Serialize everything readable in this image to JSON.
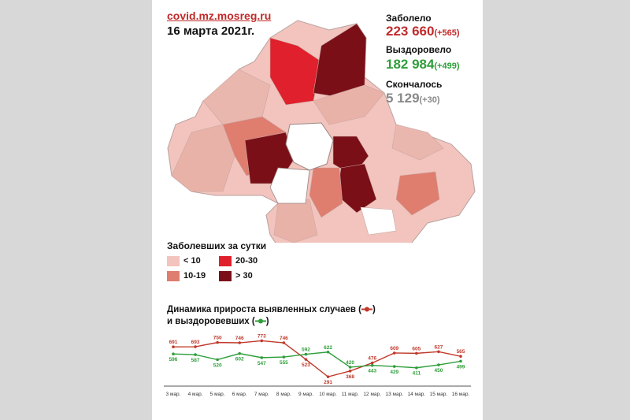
{
  "header": {
    "source": "covid.mz.mosreg.ru",
    "date": "16 марта 2021г."
  },
  "stats": {
    "sick_label": "Заболело",
    "sick_value": "223 660",
    "sick_delta": "(+565)",
    "recovered_label": "Выздоровело",
    "recovered_value": "182 984",
    "recovered_delta": "(+499)",
    "died_label": "Скончалось",
    "died_value": "5 129",
    "died_delta": "(+30)"
  },
  "map_legend": {
    "title": "Заболевших за сутки",
    "items": [
      {
        "label": "< 10",
        "color": "#f2c4bd"
      },
      {
        "label": "10-19",
        "color": "#df7d6f"
      },
      {
        "label": "20-30",
        "color": "#e0202c"
      },
      {
        "label": "> 30",
        "color": "#7a0f18"
      }
    ]
  },
  "colors": {
    "cases": "#c0392b",
    "recovered": "#2e9e3a",
    "accent_red": "#c22a2a",
    "accent_green": "#2e9e3a",
    "accent_gray": "#888888"
  },
  "chart_data": {
    "type": "line",
    "title": "Динамика прироста выявленных случаев (",
    "title_line2": "и выздоровевших (",
    "categories": [
      "3 мар.",
      "4 мар.",
      "5 мар.",
      "6 мар.",
      "7 мар.",
      "8 мар.",
      "9 мар.",
      "10 мар.",
      "11 мар.",
      "12 мар.",
      "13 мар.",
      "14 мар.",
      "15 мар.",
      "16 мар."
    ],
    "series": [
      {
        "values": [
          691,
          693,
          750,
          746,
          773,
          746,
          523,
          291,
          368,
          476,
          609,
          605,
          627,
          565
        ]
      },
      {
        "values": [
          596,
          587,
          520,
          602,
          547,
          555,
          592,
          622,
          420,
          443,
          429,
          411,
          450,
          499
        ]
      }
    ],
    "ylim": [
      250,
      820
    ],
    "grid": false
  }
}
